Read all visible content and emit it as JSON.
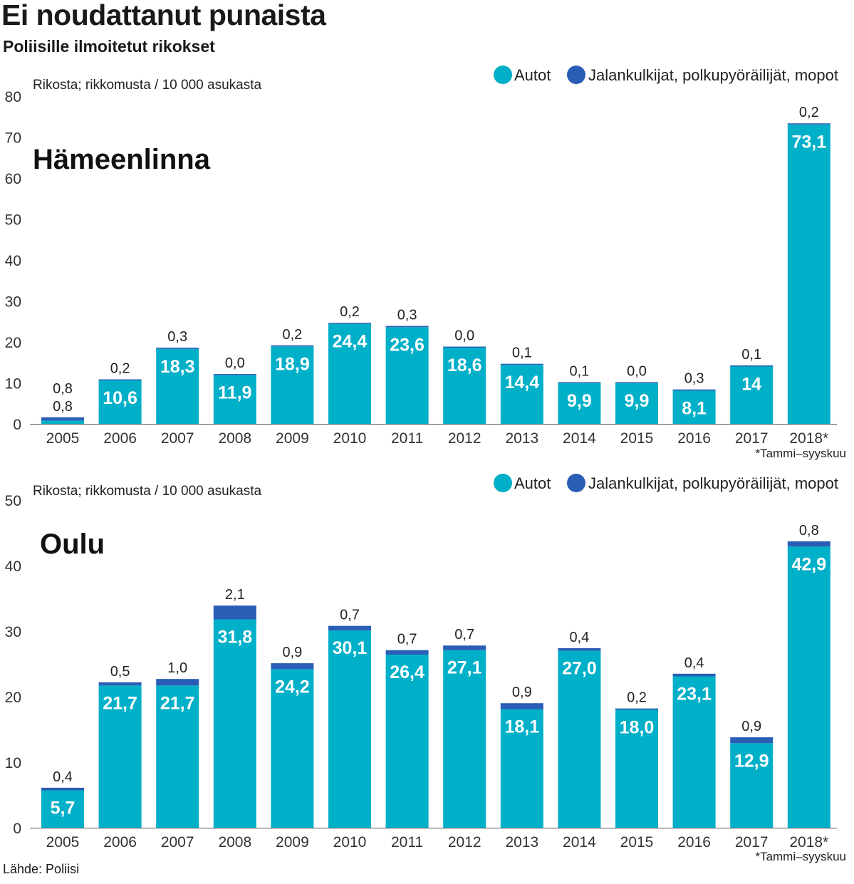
{
  "title": "Ei noudattanut punaista",
  "subtitle": "Poliisille ilmoitetut rikokset",
  "source": "Lähde: Poliisi",
  "colors": {
    "autot": "#00afc8",
    "jalankulkijat": "#2a5db5",
    "axis": "#333333",
    "grid": "#bfbfbf",
    "value_inside": "#ffffff",
    "value_outside": "#222222"
  },
  "chart_data": [
    {
      "type": "bar",
      "stacked": true,
      "title": "Hämeenlinna",
      "ylabel": "Rikosta; rikkomusta / 10 000 asukasta",
      "ylim": [
        0,
        80
      ],
      "yticks": [
        0,
        10,
        20,
        30,
        40,
        50,
        60,
        70,
        80
      ],
      "grid": false,
      "legend": "top-right",
      "categories": [
        "2005",
        "2006",
        "2007",
        "2008",
        "2009",
        "2010",
        "2011",
        "2012",
        "2013",
        "2014",
        "2015",
        "2016",
        "2017",
        "2018*"
      ],
      "series": [
        {
          "name": "Autot",
          "color": "#00afc8",
          "values": [
            0.8,
            10.6,
            18.3,
            11.9,
            18.9,
            24.4,
            23.6,
            18.6,
            14.4,
            9.9,
            9.9,
            8.1,
            14,
            73.1
          ],
          "labels": [
            "0,8",
            "10,6",
            "18,3",
            "11,9",
            "18,9",
            "24,4",
            "23,6",
            "18,6",
            "14,4",
            "9,9",
            "9,9",
            "8,1",
            "14",
            "73,1"
          ]
        },
        {
          "name": "Jalankulkijat, polkupyöräilijät, mopot",
          "color": "#2a5db5",
          "values": [
            0.8,
            0.2,
            0.3,
            0.0,
            0.2,
            0.2,
            0.3,
            0.0,
            0.1,
            0.1,
            0.0,
            0.3,
            0.1,
            0.2
          ],
          "labels": [
            "0,8",
            "0,2",
            "0,3",
            "0,0",
            "0,2",
            "0,2",
            "0,3",
            "0,0",
            "0,1",
            "0,1",
            "0,0",
            "0,3",
            "0,1",
            "0,2"
          ]
        }
      ],
      "footnote": "*Tammi–syyskuu"
    },
    {
      "type": "bar",
      "stacked": true,
      "title": "Oulu",
      "ylabel": "Rikosta; rikkomusta / 10 000 asukasta",
      "ylim": [
        0,
        50
      ],
      "yticks": [
        0,
        10,
        20,
        30,
        40,
        50
      ],
      "grid": false,
      "legend": "top-right",
      "categories": [
        "2005",
        "2006",
        "2007",
        "2008",
        "2009",
        "2010",
        "2011",
        "2012",
        "2013",
        "2014",
        "2015",
        "2016",
        "2017",
        "2018*"
      ],
      "series": [
        {
          "name": "Autot",
          "color": "#00afc8",
          "values": [
            5.7,
            21.7,
            21.7,
            31.8,
            24.2,
            30.1,
            26.4,
            27.1,
            18.1,
            27.0,
            18.0,
            23.1,
            12.9,
            42.9
          ],
          "labels": [
            "5,7",
            "21,7",
            "21,7",
            "31,8",
            "24,2",
            "30,1",
            "26,4",
            "27,1",
            "18,1",
            "27,0",
            "18,0",
            "23,1",
            "12,9",
            "42,9"
          ]
        },
        {
          "name": "Jalankulkijat, polkupyöräilijät, mopot",
          "color": "#2a5db5",
          "values": [
            0.4,
            0.5,
            1.0,
            2.1,
            0.9,
            0.7,
            0.7,
            0.7,
            0.9,
            0.4,
            0.2,
            0.4,
            0.9,
            0.8
          ],
          "labels": [
            "0,4",
            "0,5",
            "1,0",
            "2,1",
            "0,9",
            "0,7",
            "0,7",
            "0,7",
            "0,9",
            "0,4",
            "0,2",
            "0,4",
            "0,9",
            "0,8"
          ]
        }
      ],
      "footnote": "*Tammi–syyskuu"
    }
  ]
}
